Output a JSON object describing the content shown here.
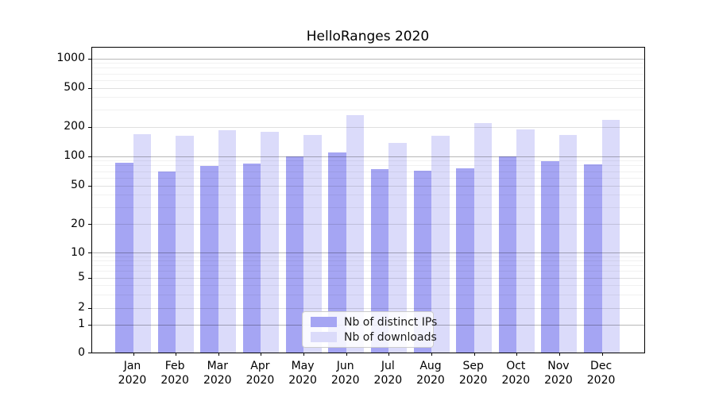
{
  "chart_data": {
    "type": "bar",
    "title": "HelloRanges 2020",
    "categories": [
      "Jan",
      "Feb",
      "Mar",
      "Apr",
      "May",
      "Jun",
      "Jul",
      "Aug",
      "Sep",
      "Oct",
      "Nov",
      "Dec"
    ],
    "year_suffix": "2020",
    "series": [
      {
        "name": "Nb of distinct IPs",
        "color": "#a5a5f3",
        "values": [
          86,
          70,
          79,
          83,
          99,
          109,
          74,
          71,
          75,
          100,
          88,
          82
        ]
      },
      {
        "name": "Nb of downloads",
        "color": "#dbdbfa",
        "values": [
          166,
          160,
          185,
          176,
          163,
          263,
          137,
          160,
          217,
          188,
          165,
          234
        ]
      }
    ],
    "y_axis": {
      "scale": "symlog",
      "ticks": [
        0,
        1,
        2,
        5,
        10,
        20,
        50,
        100,
        200,
        500,
        1000
      ]
    },
    "legend": {
      "position": "lower center"
    },
    "grid": "log minor + major horizontal gridlines",
    "ylim": [
      0,
      1300
    ]
  }
}
